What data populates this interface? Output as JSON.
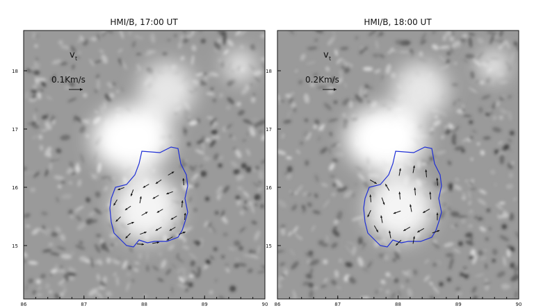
{
  "colors": {
    "contour": "#1f2fd6",
    "arrow": "#111111",
    "background_gray": "#9a9a9a"
  },
  "panels": [
    {
      "title": "HMI/B, 17:00 UT",
      "vector_label": "v",
      "vector_sub": "t",
      "scale_label": "0.1Km/s",
      "x_ticks": [
        "86",
        "87",
        "88",
        "89",
        "90"
      ],
      "y_ticks": [
        "18",
        "17",
        "16",
        "15"
      ]
    },
    {
      "title": "HMI/B, 18:00 UT",
      "vector_label": "v",
      "vector_sub": "t",
      "scale_label": "0.2Km/s",
      "x_ticks": [
        "86",
        "87",
        "88",
        "89",
        "90"
      ],
      "y_ticks": [
        "18",
        "17",
        "16",
        "15"
      ]
    }
  ]
}
